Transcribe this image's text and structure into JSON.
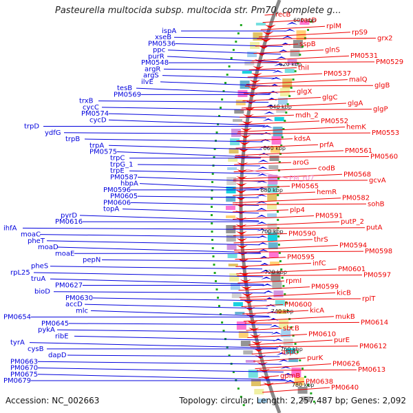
{
  "title": "Pasteurella multocida subsp. multocida str. Pm70, complete g...",
  "accession": "Accession: NC_002663",
  "topology": "Topology: circular; Length: 2,257,487 bp; Genes: 2,092",
  "colors": {
    "forward": "#0000dd",
    "reverse": "#ee0000",
    "rna": "#ee88cc",
    "backbone": "#888888",
    "tick": "#22aa22"
  },
  "kbp_ticks": [
    "600 kbp",
    "620 kbp",
    "640 kbp",
    "660 kbp",
    "680 kbp",
    "700 kbp",
    "720 kbp",
    "740 kbp",
    "760 kbp",
    "780 kbp"
  ],
  "forward_genes": [
    "ispA",
    "xseB",
    "PM0536",
    "ppc",
    "purR",
    "PM0548",
    "argR",
    "argS",
    "ilvE",
    "tesB",
    "PM0569",
    "trxB",
    "cycC",
    "PM0574",
    "cycD",
    "trpD",
    "ydfG",
    "trpB",
    "trpA",
    "PM0575",
    "trpC",
    "trpG_1",
    "trpE",
    "PM0587",
    "hbpA",
    "PM0596",
    "PM0605",
    "PM0606",
    "topA",
    "pyrD",
    "PM0616",
    "ihfA",
    "moaC",
    "pheT",
    "moaD",
    "moaE",
    "pepN",
    "pheS",
    "rpL25",
    "truA",
    "PM0627",
    "bioD",
    "PM0630",
    "accD",
    "mlc",
    "PM0654",
    "PM0645",
    "pykA",
    "ribE",
    "tyrA",
    "cysB",
    "dapD",
    "PM0663",
    "PM0670",
    "PM0675",
    "PM0679"
  ],
  "reverse_genes": [
    "recB",
    "recD",
    "rplM",
    "rpS9",
    "grx2",
    "sspB",
    "glnS",
    "PM0531",
    "PM0529",
    "thiI",
    "PM0537",
    "malQ",
    "glgB",
    "glgX",
    "glgC",
    "glgA",
    "glgP",
    "mdh_2",
    "PM0552",
    "hemK",
    "PM0553",
    "kdsA",
    "prfA",
    "PM0561",
    "PM0560",
    "aroG",
    "codB",
    "PM0568",
    "gcvA",
    "PM0565",
    "hemR",
    "PM0582",
    "sohB",
    "plp4",
    "PM0591",
    "putP_2",
    "putA",
    "PM0590",
    "thrS",
    "PM0594",
    "PM0598",
    "PM0595",
    "infC",
    "PM0601",
    "PM0597",
    "rpmI",
    "PM0599",
    "kicB",
    "rplT",
    "PM0600",
    "kicA",
    "mukB",
    "PM0614",
    "sbcB",
    "PM0610",
    "purE",
    "PM0612",
    "aspC",
    "purK",
    "PM0626",
    "PM0613",
    "gpmB",
    "PM0638",
    "PM0640"
  ],
  "rna_genes": [
    "PM_r07"
  ]
}
